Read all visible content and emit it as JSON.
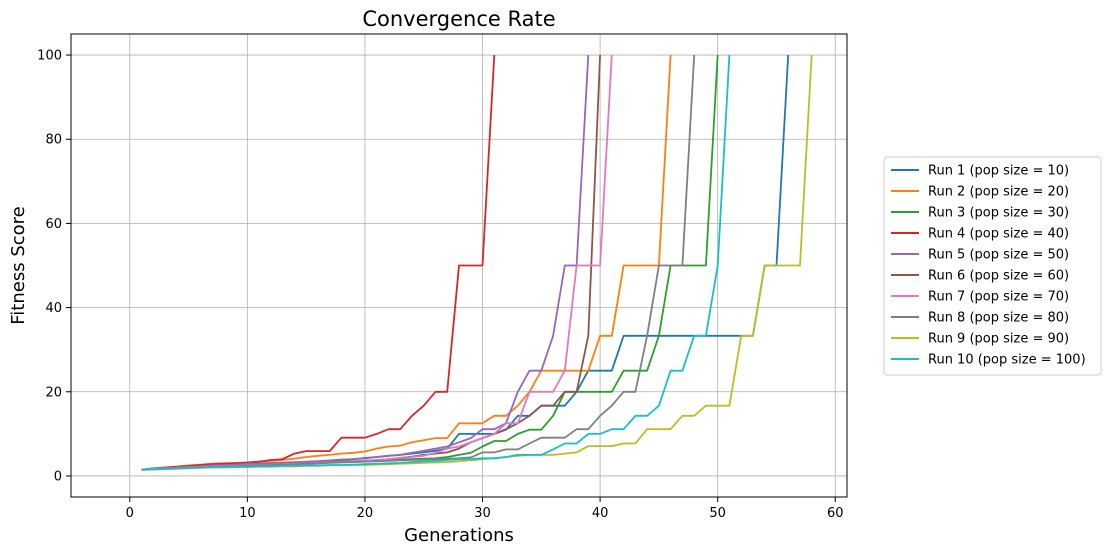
{
  "chart_data": {
    "type": "line",
    "title": "Convergence Rate",
    "xlabel": "Generations",
    "ylabel": "Fitness Score",
    "xlim": [
      -5,
      61
    ],
    "ylim": [
      -5,
      105
    ],
    "xticks": [
      0,
      10,
      20,
      30,
      40,
      50,
      60
    ],
    "yticks": [
      0,
      20,
      40,
      60,
      80,
      100
    ],
    "grid": true,
    "legend_position": "right",
    "series": [
      {
        "name": "Run 1 (pop size = 10)",
        "color": "#1f77b4",
        "x": [
          1,
          2,
          3,
          4,
          5,
          6,
          7,
          8,
          9,
          10,
          11,
          12,
          13,
          14,
          15,
          16,
          17,
          18,
          19,
          20,
          21,
          22,
          23,
          24,
          25,
          26,
          27,
          28,
          29,
          30,
          31,
          32,
          33,
          34,
          35,
          36,
          37,
          38,
          39,
          40,
          41,
          42,
          43,
          44,
          45,
          46,
          47,
          48,
          49,
          50,
          51,
          52,
          53,
          54,
          55,
          56
        ],
        "y": [
          1.5,
          1.7,
          1.8,
          1.9,
          2.0,
          2.1,
          2.2,
          2.3,
          2.4,
          2.5,
          2.6,
          2.8,
          3.0,
          3.1,
          3.3,
          3.4,
          3.6,
          3.8,
          4.0,
          4.2,
          4.5,
          4.8,
          5.0,
          5.3,
          5.6,
          6.0,
          6.5,
          10,
          10,
          10,
          10,
          11,
          14.3,
          14.3,
          16.7,
          16.7,
          16.7,
          20,
          25,
          25,
          25,
          33.3,
          33.3,
          33.3,
          33.3,
          33.3,
          33.3,
          33.3,
          33.3,
          33.3,
          33.3,
          33.3,
          33.3,
          50,
          50,
          100
        ]
      },
      {
        "name": "Run 2 (pop size = 20)",
        "color": "#ff7f0e",
        "x": [
          1,
          2,
          3,
          4,
          5,
          6,
          7,
          8,
          9,
          10,
          11,
          12,
          13,
          14,
          15,
          16,
          17,
          18,
          19,
          20,
          21,
          22,
          23,
          24,
          25,
          26,
          27,
          28,
          29,
          30,
          31,
          32,
          33,
          34,
          35,
          36,
          37,
          38,
          39,
          40,
          41,
          42,
          43,
          44,
          45,
          46
        ],
        "y": [
          1.5,
          1.8,
          2.0,
          2.2,
          2.5,
          2.7,
          2.9,
          3.0,
          3.1,
          3.2,
          3.4,
          3.6,
          3.8,
          4.1,
          4.5,
          4.8,
          5.0,
          5.3,
          5.5,
          5.8,
          6.5,
          7.0,
          7.2,
          8.0,
          8.5,
          9.0,
          9.0,
          12.5,
          12.5,
          12.5,
          14.3,
          14.3,
          16.7,
          20,
          25,
          25,
          25,
          25,
          25,
          33.3,
          33.3,
          50,
          50,
          50,
          50,
          100
        ]
      },
      {
        "name": "Run 3 (pop size = 30)",
        "color": "#2ca02c",
        "x": [
          1,
          2,
          3,
          4,
          5,
          6,
          7,
          8,
          9,
          10,
          11,
          12,
          13,
          14,
          15,
          16,
          17,
          18,
          19,
          20,
          21,
          22,
          23,
          24,
          25,
          26,
          27,
          28,
          29,
          30,
          31,
          32,
          33,
          34,
          35,
          36,
          37,
          38,
          39,
          40,
          41,
          42,
          43,
          44,
          45,
          46,
          47,
          48,
          49,
          50
        ],
        "y": [
          1.5,
          1.7,
          1.8,
          2.0,
          2.1,
          2.2,
          2.3,
          2.4,
          2.5,
          2.6,
          2.7,
          2.8,
          2.9,
          3.0,
          3.1,
          3.2,
          3.3,
          3.4,
          3.5,
          3.6,
          3.7,
          3.8,
          3.9,
          4.0,
          4.1,
          4.2,
          4.5,
          5.0,
          5.5,
          7.0,
          8.3,
          8.3,
          10,
          11,
          11,
          14.3,
          20,
          20,
          20,
          20,
          20,
          25,
          25,
          25,
          33.3,
          50,
          50,
          50,
          50,
          100
        ]
      },
      {
        "name": "Run 4 (pop size = 40)",
        "color": "#d62728",
        "x": [
          1,
          2,
          3,
          4,
          5,
          6,
          7,
          8,
          9,
          10,
          11,
          12,
          13,
          14,
          15,
          16,
          17,
          18,
          19,
          20,
          21,
          22,
          23,
          24,
          25,
          26,
          27,
          28,
          29,
          30,
          31
        ],
        "y": [
          1.5,
          1.8,
          2.0,
          2.2,
          2.4,
          2.6,
          2.8,
          2.9,
          3.0,
          3.2,
          3.4,
          3.8,
          4.0,
          5.3,
          5.9,
          5.9,
          5.9,
          9.1,
          9.1,
          9.1,
          10,
          11.1,
          11.1,
          14.3,
          16.7,
          20,
          20,
          50,
          50,
          50,
          100
        ]
      },
      {
        "name": "Run 5 (pop size = 50)",
        "color": "#9467bd",
        "x": [
          1,
          2,
          3,
          4,
          5,
          6,
          7,
          8,
          9,
          10,
          11,
          12,
          13,
          14,
          15,
          16,
          17,
          18,
          19,
          20,
          21,
          22,
          23,
          24,
          25,
          26,
          27,
          28,
          29,
          30,
          31,
          32,
          33,
          34,
          35,
          36,
          37,
          38,
          39
        ],
        "y": [
          1.5,
          1.7,
          1.9,
          2.0,
          2.2,
          2.3,
          2.5,
          2.6,
          2.7,
          2.9,
          3.0,
          3.1,
          3.2,
          3.3,
          3.4,
          3.5,
          3.7,
          3.9,
          4.0,
          4.3,
          4.5,
          4.8,
          5.0,
          5.5,
          6.0,
          6.5,
          7.0,
          8.0,
          9.0,
          11.1,
          11.1,
          12.5,
          20,
          25,
          25,
          33.3,
          50,
          50,
          100
        ]
      },
      {
        "name": "Run 6 (pop size = 60)",
        "color": "#8c564b",
        "x": [
          1,
          2,
          3,
          4,
          5,
          6,
          7,
          8,
          9,
          10,
          11,
          12,
          13,
          14,
          15,
          16,
          17,
          18,
          19,
          20,
          21,
          22,
          23,
          24,
          25,
          26,
          27,
          28,
          29,
          30,
          31,
          32,
          33,
          34,
          35,
          36,
          37,
          38,
          39,
          40
        ],
        "y": [
          1.5,
          1.6,
          1.8,
          1.9,
          2.0,
          2.1,
          2.2,
          2.3,
          2.4,
          2.5,
          2.6,
          2.7,
          2.8,
          2.9,
          3.0,
          3.1,
          3.2,
          3.3,
          3.4,
          3.6,
          3.8,
          4.0,
          4.3,
          4.6,
          5.0,
          5.3,
          5.6,
          6.5,
          8.0,
          9.0,
          10,
          11.1,
          12.5,
          14.3,
          16.7,
          16.7,
          20,
          20,
          33.3,
          100
        ]
      },
      {
        "name": "Run 7 (pop size = 70)",
        "color": "#e377c2",
        "x": [
          1,
          2,
          3,
          4,
          5,
          6,
          7,
          8,
          9,
          10,
          11,
          12,
          13,
          14,
          15,
          16,
          17,
          18,
          19,
          20,
          21,
          22,
          23,
          24,
          25,
          26,
          27,
          28,
          29,
          30,
          31,
          32,
          33,
          34,
          35,
          36,
          37,
          38,
          39,
          40,
          41
        ],
        "y": [
          1.5,
          1.7,
          1.8,
          1.9,
          2.0,
          2.1,
          2.2,
          2.3,
          2.4,
          2.5,
          2.6,
          2.7,
          2.8,
          2.9,
          3.0,
          3.1,
          3.2,
          3.3,
          3.4,
          3.6,
          3.8,
          4.0,
          4.3,
          4.5,
          4.8,
          5.5,
          6.5,
          7.0,
          8.0,
          9.0,
          10,
          12.5,
          12.5,
          20,
          20,
          20,
          25,
          50,
          50,
          50,
          100
        ]
      },
      {
        "name": "Run 8 (pop size = 80)",
        "color": "#7f7f7f",
        "x": [
          1,
          2,
          3,
          4,
          5,
          6,
          7,
          8,
          9,
          10,
          11,
          12,
          13,
          14,
          15,
          16,
          17,
          18,
          19,
          20,
          21,
          22,
          23,
          24,
          25,
          26,
          27,
          28,
          29,
          30,
          31,
          32,
          33,
          34,
          35,
          36,
          37,
          38,
          39,
          40,
          41,
          42,
          43,
          44,
          45,
          46,
          47,
          48
        ],
        "y": [
          1.5,
          1.6,
          1.7,
          1.8,
          1.9,
          2.0,
          2.1,
          2.2,
          2.3,
          2.4,
          2.5,
          2.6,
          2.7,
          2.8,
          2.9,
          3.0,
          3.1,
          3.2,
          3.3,
          3.4,
          3.5,
          3.6,
          3.7,
          3.8,
          3.9,
          4.0,
          4.1,
          4.2,
          4.4,
          5.6,
          5.6,
          6.3,
          6.3,
          7.7,
          9.1,
          9.1,
          9.1,
          11.1,
          11.1,
          14.3,
          16.7,
          20,
          20,
          33.3,
          50,
          50,
          50,
          100
        ]
      },
      {
        "name": "Run 9 (pop size = 90)",
        "color": "#bcbd22",
        "x": [
          1,
          2,
          3,
          4,
          5,
          6,
          7,
          8,
          9,
          10,
          11,
          12,
          13,
          14,
          15,
          16,
          17,
          18,
          19,
          20,
          21,
          22,
          23,
          24,
          25,
          26,
          27,
          28,
          29,
          30,
          31,
          32,
          33,
          34,
          35,
          36,
          37,
          38,
          39,
          40,
          41,
          42,
          43,
          44,
          45,
          46,
          47,
          48,
          49,
          50,
          51,
          52,
          53,
          54,
          55,
          56,
          57,
          58
        ],
        "y": [
          1.4,
          1.5,
          1.6,
          1.7,
          1.8,
          1.9,
          2.0,
          2.0,
          2.1,
          2.1,
          2.2,
          2.2,
          2.3,
          2.3,
          2.4,
          2.4,
          2.5,
          2.5,
          2.6,
          2.6,
          2.7,
          2.8,
          2.9,
          3.0,
          3.1,
          3.2,
          3.3,
          3.5,
          3.7,
          4.0,
          4.2,
          4.5,
          4.8,
          5.0,
          5.0,
          5.0,
          5.3,
          5.6,
          7.1,
          7.1,
          7.1,
          7.7,
          7.7,
          11.1,
          11.1,
          11.1,
          14.3,
          14.3,
          16.7,
          16.7,
          16.7,
          33.3,
          33.3,
          50,
          50,
          50,
          50,
          100
        ]
      },
      {
        "name": "Run 10 (pop size = 100)",
        "color": "#17becf",
        "x": [
          1,
          2,
          3,
          4,
          5,
          6,
          7,
          8,
          9,
          10,
          11,
          12,
          13,
          14,
          15,
          16,
          17,
          18,
          19,
          20,
          21,
          22,
          23,
          24,
          25,
          26,
          27,
          28,
          29,
          30,
          31,
          32,
          33,
          34,
          35,
          36,
          37,
          38,
          39,
          40,
          41,
          42,
          43,
          44,
          45,
          46,
          47,
          48,
          49,
          50,
          51
        ],
        "y": [
          1.5,
          1.6,
          1.7,
          1.8,
          1.9,
          2.0,
          2.1,
          2.1,
          2.2,
          2.2,
          2.3,
          2.3,
          2.4,
          2.4,
          2.5,
          2.5,
          2.6,
          2.6,
          2.7,
          2.8,
          2.9,
          3.0,
          3.1,
          3.3,
          3.5,
          3.6,
          3.8,
          4.0,
          4.0,
          4.2,
          4.2,
          4.5,
          5.0,
          5.0,
          5.0,
          6.3,
          7.7,
          7.7,
          10,
          10,
          11.1,
          11.1,
          14.3,
          14.3,
          16.7,
          25,
          25,
          33.3,
          33.3,
          50,
          100
        ]
      }
    ]
  }
}
